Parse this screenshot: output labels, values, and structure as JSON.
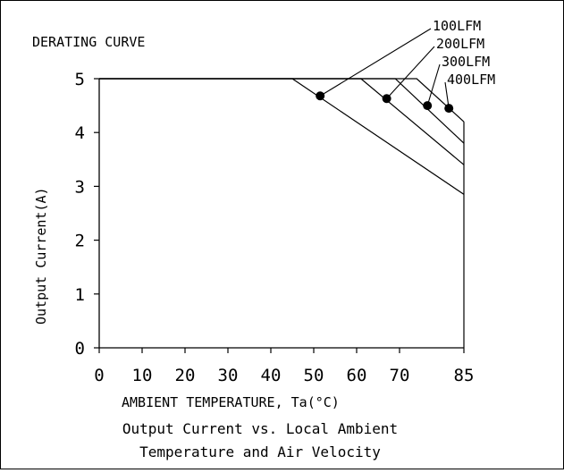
{
  "chart_data": {
    "type": "line",
    "title": "DERATING CURVE",
    "xlabel": "AMBIENT TEMPERATURE, Ta(°C)",
    "ylabel": "Output Current(A)",
    "caption_lines": [
      "Output Current vs. Local Ambient",
      "Temperature and Air Velocity"
    ],
    "xlim": [
      0,
      85
    ],
    "ylim": [
      0,
      5
    ],
    "x_ticks": [
      0,
      10,
      20,
      30,
      40,
      50,
      60,
      70,
      85
    ],
    "y_ticks": [
      0,
      1,
      2,
      3,
      4,
      5
    ],
    "grid": false,
    "series": [
      {
        "name": "100LFM",
        "points": [
          [
            0,
            5
          ],
          [
            45,
            5
          ],
          [
            85,
            2.85
          ]
        ],
        "marker": [
          51.5,
          4.68
        ]
      },
      {
        "name": "200LFM",
        "points": [
          [
            0,
            5
          ],
          [
            61,
            5
          ],
          [
            85,
            3.4
          ]
        ],
        "marker": [
          67,
          4.63
        ]
      },
      {
        "name": "300LFM",
        "points": [
          [
            0,
            5
          ],
          [
            69,
            5
          ],
          [
            85,
            3.8
          ]
        ],
        "marker": [
          76.5,
          4.5
        ]
      },
      {
        "name": "400LFM",
        "points": [
          [
            0,
            5
          ],
          [
            74,
            5
          ],
          [
            85,
            4.2
          ]
        ],
        "marker": [
          81.5,
          4.45
        ]
      }
    ]
  }
}
